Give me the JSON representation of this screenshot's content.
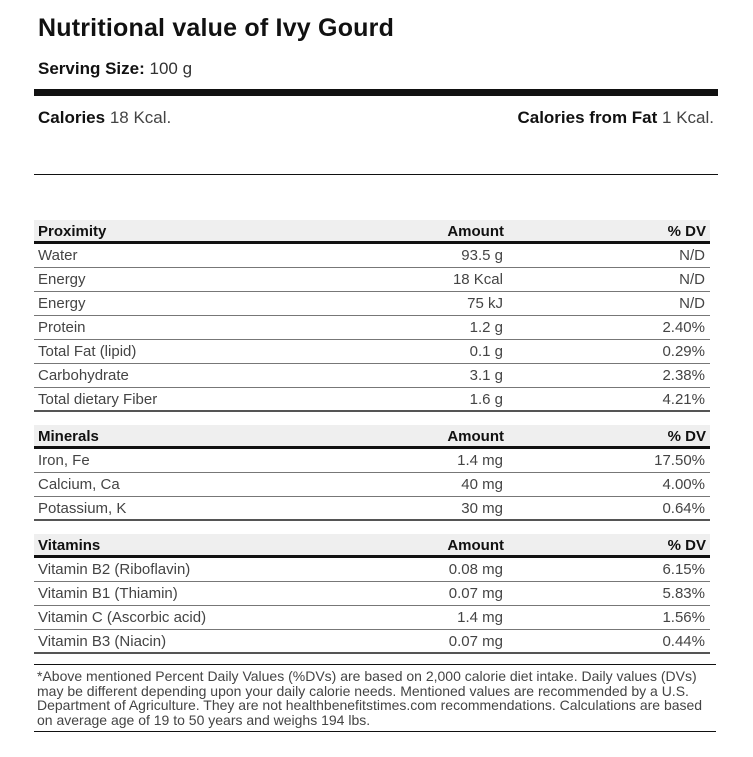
{
  "title": "Nutritional value of Ivy Gourd",
  "serving": {
    "label": "Serving Size:",
    "value": "100 g"
  },
  "calories": {
    "label": "Calories",
    "value": "18 Kcal.",
    "fat_label": "Calories from Fat",
    "fat_value": "1 Kcal."
  },
  "proximity": {
    "headers": {
      "name": "Proximity",
      "amount": "Amount",
      "dv": "% DV"
    },
    "rows": [
      {
        "name": "Water",
        "amount": "93.5 g",
        "dv": "N/D"
      },
      {
        "name": "Energy",
        "amount": "18 Kcal",
        "dv": "N/D"
      },
      {
        "name": "Energy",
        "amount": "75 kJ",
        "dv": "N/D"
      },
      {
        "name": "Protein",
        "amount": "1.2 g",
        "dv": "2.40%"
      },
      {
        "name": "Total Fat (lipid)",
        "amount": "0.1 g",
        "dv": "0.29%"
      },
      {
        "name": "Carbohydrate",
        "amount": "3.1 g",
        "dv": "2.38%"
      },
      {
        "name": "Total dietary Fiber",
        "amount": "1.6 g",
        "dv": "4.21%"
      }
    ]
  },
  "minerals": {
    "headers": {
      "name": "Minerals",
      "amount": "Amount",
      "dv": "% DV"
    },
    "rows": [
      {
        "name": "Iron, Fe",
        "amount": "1.4 mg",
        "dv": "17.50%"
      },
      {
        "name": "Calcium, Ca",
        "amount": "40 mg",
        "dv": "4.00%"
      },
      {
        "name": "Potassium, K",
        "amount": "30 mg",
        "dv": "0.64%"
      }
    ]
  },
  "vitamins": {
    "headers": {
      "name": "Vitamins",
      "amount": "Amount",
      "dv": "% DV"
    },
    "rows": [
      {
        "name": "Vitamin B2 (Riboflavin)",
        "amount": "0.08 mg",
        "dv": "6.15%"
      },
      {
        "name": "Vitamin B1 (Thiamin)",
        "amount": "0.07 mg",
        "dv": "5.83%"
      },
      {
        "name": "Vitamin C (Ascorbic acid)",
        "amount": "1.4 mg",
        "dv": "1.56%"
      },
      {
        "name": "Vitamin B3 (Niacin)",
        "amount": "0.07 mg",
        "dv": "0.44%"
      }
    ]
  },
  "footnote": "*Above mentioned Percent Daily Values (%DVs) are based on 2,000 calorie diet intake. Daily values (DVs) may be different depending upon your daily calorie needs. Mentioned values are recommended by a U.S. Department of Agriculture. They are not healthbenefitstimes.com recommendations. Calculations are based on average age of 19 to 50 years and weighs 194 lbs."
}
